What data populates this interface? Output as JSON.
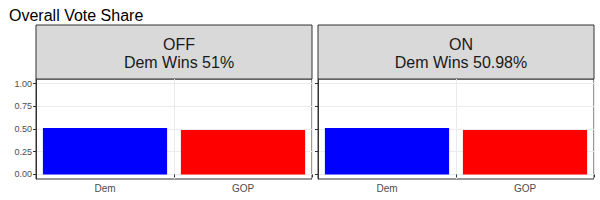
{
  "title": "Overall Vote Share",
  "chart_data": [
    {
      "type": "bar",
      "title": "OFF",
      "subtitle": "Dem Wins 51%",
      "categories": [
        "Dem",
        "GOP"
      ],
      "values": [
        0.51,
        0.49
      ],
      "colors": [
        "#0000ff",
        "#ff0000"
      ],
      "ylim": [
        -0.05,
        1.05
      ],
      "yticks": [
        {
          "value": 0,
          "label": "0.00"
        },
        {
          "value": 0.25,
          "label": "0.25"
        },
        {
          "value": 0.5,
          "label": "0.50"
        },
        {
          "value": 0.75,
          "label": "0.75"
        },
        {
          "value": 1,
          "label": "1.00"
        }
      ],
      "grid": true
    },
    {
      "type": "bar",
      "title": "ON",
      "subtitle": "Dem Wins 50.98%",
      "categories": [
        "Dem",
        "GOP"
      ],
      "values": [
        0.5098,
        0.4902
      ],
      "colors": [
        "#0000ff",
        "#ff0000"
      ],
      "ylim": [
        -0.05,
        1.05
      ],
      "yticks": [
        {
          "value": 0,
          "label": "0.00"
        },
        {
          "value": 0.25,
          "label": "0.25"
        },
        {
          "value": 0.5,
          "label": "0.50"
        },
        {
          "value": 0.75,
          "label": "0.75"
        },
        {
          "value": 1,
          "label": "1.00"
        }
      ],
      "grid": true,
      "tick_labels": "x"
    }
  ]
}
